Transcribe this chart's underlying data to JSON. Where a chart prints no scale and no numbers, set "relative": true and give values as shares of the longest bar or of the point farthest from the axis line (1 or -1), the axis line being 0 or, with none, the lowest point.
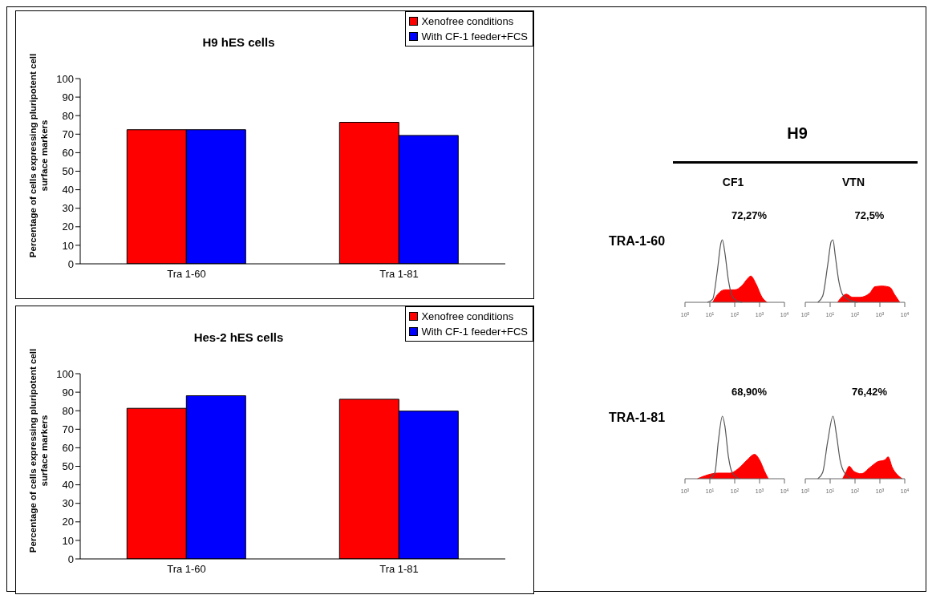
{
  "chart_data": [
    {
      "type": "bar",
      "title": "H9 hES cells",
      "ylabel": "Percentage of cells expressing pluripotent cell surface  markers",
      "categories": [
        "Tra 1-60",
        "Tra 1-81"
      ],
      "series": [
        {
          "name": "Xenofree conditions",
          "color": "#ff0000",
          "values": [
            72.4,
            76.4
          ]
        },
        {
          "name": "With CF-1 feeder+FCS",
          "color": "#0000ff",
          "values": [
            72.4,
            69.3
          ]
        }
      ],
      "ylim": [
        0,
        100
      ],
      "yticks": [
        0,
        10,
        20,
        30,
        40,
        50,
        60,
        70,
        80,
        90,
        100
      ],
      "legend": "top right"
    },
    {
      "type": "bar",
      "title": "Hes-2 hES cells",
      "ylabel": "Percentage of cells expressing pluripotent cell surface  markers",
      "categories": [
        "Tra 1-60",
        "Tra 1-81"
      ],
      "series": [
        {
          "name": "Xenofree conditions",
          "color": "#ff0000",
          "values": [
            81.3,
            86.2
          ]
        },
        {
          "name": "With CF-1 feeder+FCS",
          "color": "#0000ff",
          "values": [
            88.1,
            79.8
          ]
        }
      ],
      "ylim": [
        0,
        100
      ],
      "yticks": [
        0,
        10,
        20,
        30,
        40,
        50,
        60,
        70,
        80,
        90,
        100
      ],
      "legend": "top right"
    },
    {
      "type": "other",
      "annotations": [
        "H9",
        "CF1",
        "VTN",
        "TRA-1-60",
        "TRA-1-81"
      ]
    },
    {
      "type": "area",
      "relative": true,
      "log": "x",
      "xlim": [
        1,
        10000
      ],
      "xticks": [
        {
          "value": 1,
          "label": "10$^{0}$"
        },
        {
          "value": 10,
          "label": "10$^{1}$"
        },
        {
          "value": 100,
          "label": "10$^{2}$"
        },
        {
          "value": 1000,
          "label": "10$^{3}$"
        },
        {
          "value": 10000,
          "label": "10$^{4}$"
        }
      ],
      "annotations": [
        "72,27%"
      ],
      "series": [
        {
          "type": "line",
          "color": "#555555",
          "x": [
            8,
            13,
            20,
            28,
            32,
            40,
            56,
            79,
            126,
            200
          ],
          "values": [
            0,
            0.05,
            0.5,
            0.95,
            1,
            0.8,
            0.35,
            0.1,
            0.02,
            0
          ]
        },
        {
          "type": "area",
          "color": "#ff0000",
          "x": [
            13,
            20,
            40,
            100,
            200,
            316,
            447,
            708,
            1259,
            1995
          ],
          "values": [
            0,
            0.12,
            0.2,
            0.2,
            0.27,
            0.37,
            0.42,
            0.3,
            0.08,
            0
          ]
        }
      ]
    },
    {
      "type": "area",
      "relative": true,
      "log": "x",
      "xlim": [
        1,
        10000
      ],
      "xticks": [
        {
          "value": 1,
          "label": "10$^{0}$"
        },
        {
          "value": 10,
          "label": "10$^{1}$"
        },
        {
          "value": 100,
          "label": "10$^{2}$"
        },
        {
          "value": 1000,
          "label": "10$^{3}$"
        },
        {
          "value": 10000,
          "label": "10$^{4}$"
        }
      ],
      "annotations": [
        "72,5%"
      ],
      "series": [
        {
          "type": "line",
          "color": "#555555",
          "x": [
            3.2,
            5,
            8,
            11,
            13,
            16,
            22,
            32,
            63,
            126
          ],
          "values": [
            0,
            0.1,
            0.6,
            0.97,
            1,
            0.75,
            0.35,
            0.12,
            0.03,
            0
          ]
        },
        {
          "type": "area",
          "color": "#ff0000",
          "x": [
            20,
            32,
            45,
            79,
            158,
            398,
            631,
            1259,
            2512,
            3981,
            6310
          ],
          "values": [
            0,
            0.1,
            0.13,
            0.08,
            0.08,
            0.15,
            0.25,
            0.26,
            0.24,
            0.12,
            0
          ]
        }
      ]
    },
    {
      "type": "area",
      "relative": true,
      "log": "x",
      "xlim": [
        1,
        10000
      ],
      "xticks": [
        {
          "value": 1,
          "label": "10$^{0}$"
        },
        {
          "value": 10,
          "label": "10$^{1}$"
        },
        {
          "value": 100,
          "label": "10$^{2}$"
        },
        {
          "value": 1000,
          "label": "10$^{3}$"
        },
        {
          "value": 10000,
          "label": "10$^{4}$"
        }
      ],
      "annotations": [
        "68,90%"
      ],
      "series": [
        {
          "type": "line",
          "color": "#555555",
          "x": [
            10,
            16,
            22,
            32,
            40,
            56,
            79,
            158
          ],
          "values": [
            0,
            0.1,
            0.6,
            1,
            0.85,
            0.35,
            0.1,
            0
          ]
        },
        {
          "type": "area",
          "color": "#ff0000",
          "x": [
            3.2,
            8,
            20,
            63,
            158,
            316,
            631,
            1000,
            1585,
            2239
          ],
          "values": [
            0,
            0.06,
            0.09,
            0.09,
            0.18,
            0.3,
            0.39,
            0.3,
            0.12,
            0
          ]
        }
      ]
    },
    {
      "type": "area",
      "relative": true,
      "log": "x",
      "xlim": [
        1,
        10000
      ],
      "xticks": [
        {
          "value": 1,
          "label": "10$^{0}$"
        },
        {
          "value": 10,
          "label": "10$^{1}$"
        },
        {
          "value": 100,
          "label": "10$^{2}$"
        },
        {
          "value": 1000,
          "label": "10$^{3}$"
        },
        {
          "value": 10000,
          "label": "10$^{4}$"
        }
      ],
      "annotations": [
        "76,42%"
      ],
      "series": [
        {
          "type": "line",
          "color": "#555555",
          "x": [
            3.2,
            5,
            8,
            13,
            18,
            25,
            40,
            79
          ],
          "values": [
            0,
            0.1,
            0.6,
            1,
            0.7,
            0.3,
            0.08,
            0
          ]
        },
        {
          "type": "area",
          "color": "#ff0000",
          "x": [
            32,
            45,
            58,
            89,
            178,
            398,
            794,
            1585,
            2138,
            3162,
            6310,
            7943
          ],
          "values": [
            0,
            0.12,
            0.2,
            0.12,
            0.08,
            0.18,
            0.27,
            0.3,
            0.35,
            0.18,
            0.03,
            0
          ]
        }
      ]
    }
  ]
}
